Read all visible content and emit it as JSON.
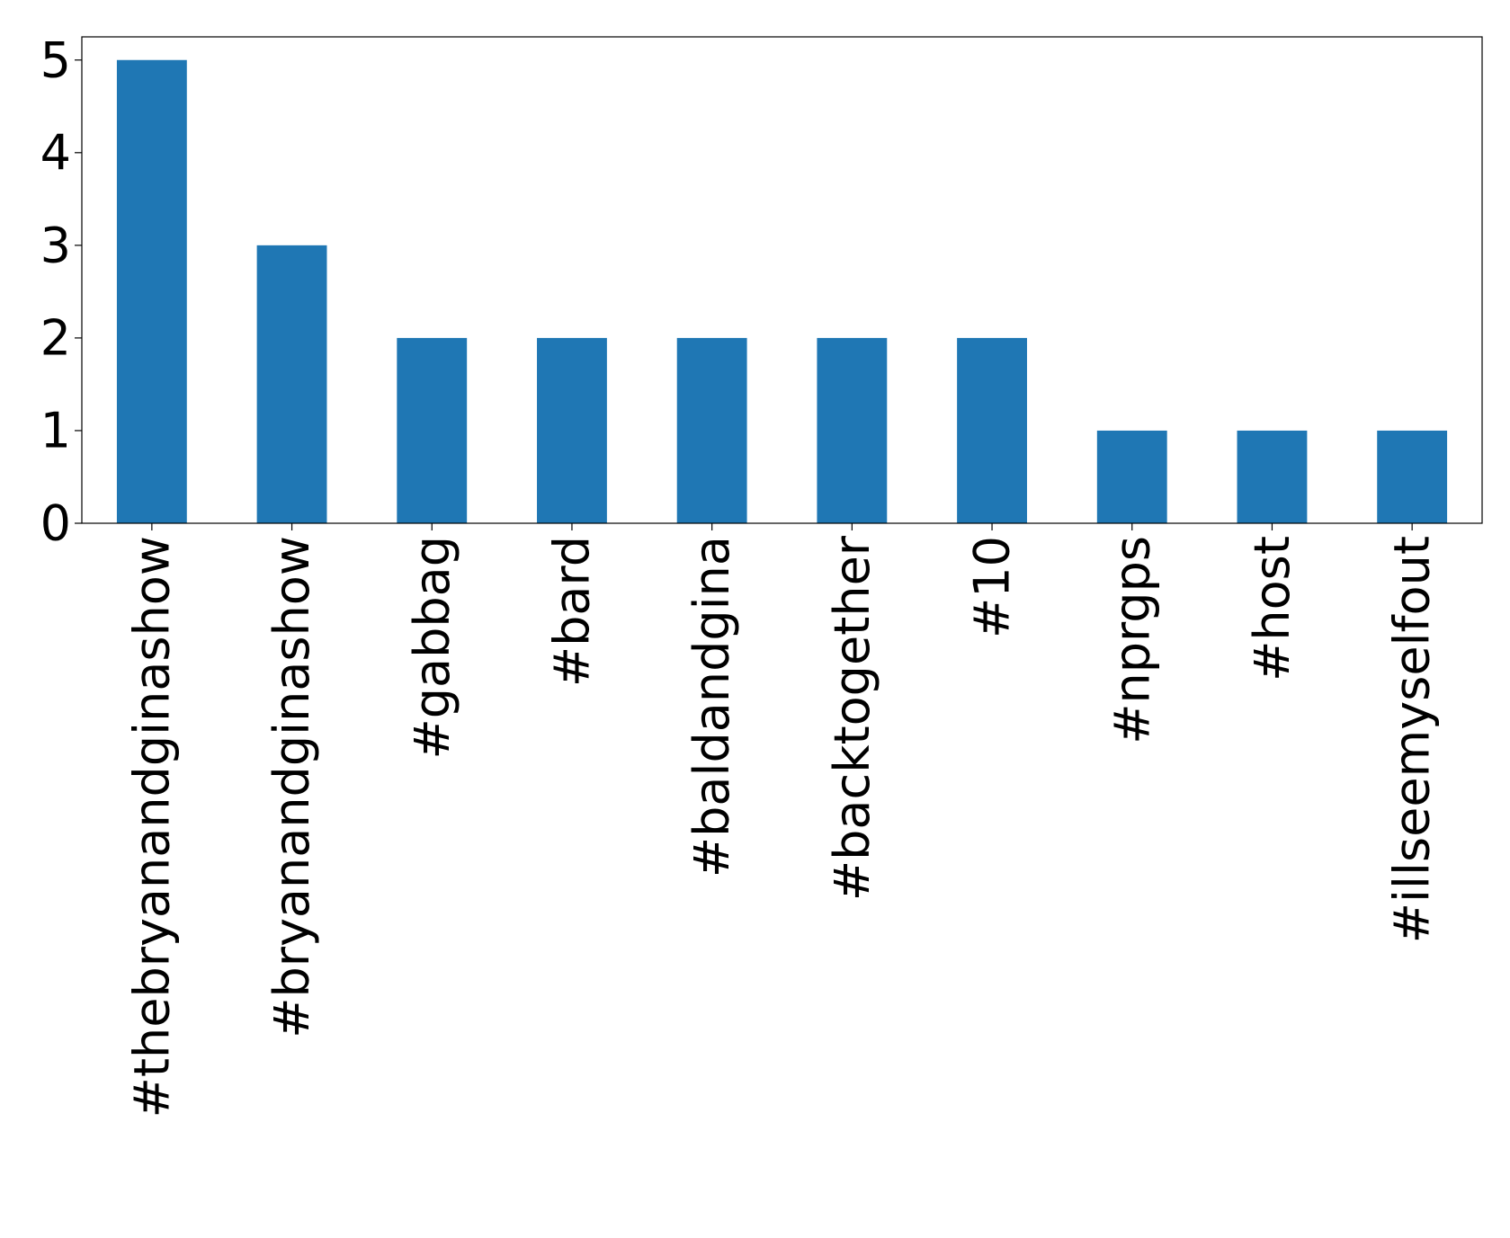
{
  "chart_data": {
    "type": "bar",
    "categories": [
      "#thebryanandginashow",
      "#bryanandginashow",
      "#gabbag",
      "#bard",
      "#baldandgina",
      "#backtogether",
      "#10",
      "#nprgps",
      "#host",
      "#illseemyselfout"
    ],
    "values": [
      5,
      3,
      2,
      2,
      2,
      2,
      2,
      1,
      1,
      1
    ],
    "color": "#1f77b4",
    "ylim": [
      0,
      5.25
    ],
    "yticks": [
      0,
      1,
      2,
      3,
      4,
      5
    ],
    "grid": false
  }
}
